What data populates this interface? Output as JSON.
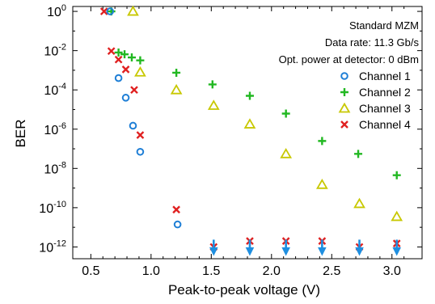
{
  "chart_data": {
    "type": "scatter",
    "xlabel": "Peak-to-peak voltage (V)",
    "ylabel": "BER",
    "xlim": [
      0.35,
      3.25
    ],
    "ylim_log10": [
      -12.6,
      0.25
    ],
    "y_scale": "log",
    "x_ticks": [
      0.5,
      1.0,
      1.5,
      2.0,
      2.5,
      3.0
    ],
    "x_tick_labels": [
      "0.5",
      "1.0",
      "1.5",
      "2.0",
      "2.5",
      "3.0"
    ],
    "y_tick_exponents": [
      0,
      -2,
      -4,
      -6,
      -8,
      -10,
      -12
    ],
    "y_tick_labels": [
      "0",
      "-2",
      "-4",
      "-6",
      "-8",
      "-10",
      "-12"
    ],
    "y_tick_base": "10",
    "grid": false,
    "legend_position": "right",
    "annotations": [
      "Standard MZM",
      "Data rate: 11.3 Gb/s",
      "Opt. power at detector: 0 dBm"
    ],
    "series": [
      {
        "name": "Channel 1",
        "marker": "circle",
        "color": "#1f7fd6",
        "x": [
          0.66,
          0.73,
          0.79,
          0.85,
          0.91,
          1.22
        ],
        "y": [
          1.0,
          0.0004,
          4e-05,
          1.5e-06,
          7e-08,
          1.4e-11
        ]
      },
      {
        "name": "Channel 2",
        "marker": "plus",
        "color": "#22b822",
        "x": [
          0.67,
          0.73,
          0.78,
          0.84,
          0.91,
          1.21,
          1.51,
          1.82,
          2.12,
          2.42,
          2.72,
          3.04
        ],
        "y": [
          1.0,
          0.008,
          0.0065,
          0.0045,
          0.0032,
          0.00075,
          0.00019,
          5e-05,
          6.2e-06,
          2.5e-07,
          5.5e-08,
          4.5e-09
        ]
      },
      {
        "name": "Channel 3",
        "marker": "triangle",
        "color": "#c8c800",
        "x": [
          0.85,
          0.91,
          1.21,
          1.52,
          1.82,
          2.12,
          2.42,
          2.73,
          3.04
        ],
        "y": [
          1.0,
          0.0008,
          0.0001,
          1.6e-05,
          1.8e-06,
          5.5e-08,
          1.5e-09,
          1.6e-10,
          3.5e-11
        ]
      },
      {
        "name": "Channel 4",
        "marker": "x",
        "color": "#e02020",
        "x": [
          0.61,
          0.67,
          0.73,
          0.79,
          0.86,
          0.91,
          1.21,
          1.52,
          1.82,
          2.12,
          2.42,
          2.73,
          3.04
        ],
        "y": [
          1.0,
          0.0095,
          0.0035,
          0.0011,
          0.0001,
          5e-07,
          8e-11,
          1e-12,
          2e-12,
          2e-12,
          2e-12,
          1e-12,
          1.5e-12
        ]
      }
    ],
    "upper_limit_arrows": {
      "color": "#1f8fe0",
      "x": [
        1.52,
        1.82,
        2.12,
        2.42,
        2.73,
        3.04
      ],
      "y": [
        1e-12,
        1e-12,
        1e-12,
        1e-12,
        1e-12,
        1e-12
      ]
    }
  }
}
